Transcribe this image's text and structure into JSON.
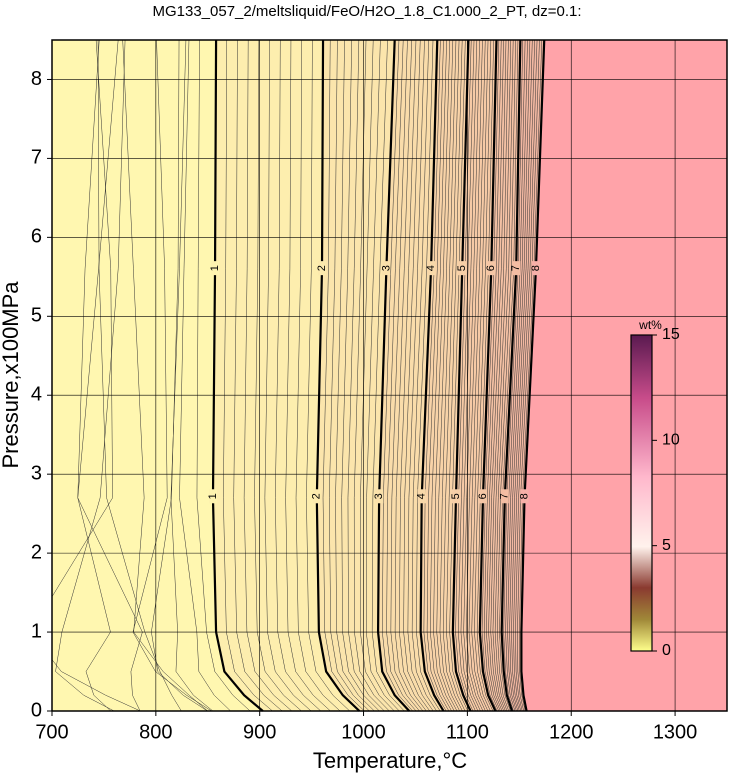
{
  "chart_data": {
    "type": "contour",
    "title": "MG133_057_2/meltsliquid/FeO/H2O_1.8_C1.000_2_PT, dz=0.1:",
    "x_label": "Temperature,°C",
    "y_label": "Pressure,x100MPa",
    "xlim": [
      700,
      1350
    ],
    "xticks": [
      700,
      800,
      900,
      1000,
      1100,
      1200,
      1300
    ],
    "ylim": [
      0,
      8.5
    ],
    "yticks": [
      0,
      1,
      2,
      3,
      4,
      5,
      6,
      7,
      8
    ],
    "grid": true,
    "contours": [
      {
        "level": 1,
        "x": [
          903,
          885,
          866,
          858,
          855,
          857,
          858
        ],
        "y": [
          0,
          0.2,
          0.5,
          1,
          2.7,
          5.6,
          8.5
        ]
      },
      {
        "level": 2,
        "x": [
          996,
          980,
          964,
          957,
          955,
          960,
          961
        ],
        "y": [
          0,
          0.2,
          0.5,
          1,
          2.7,
          5.6,
          8.5
        ]
      },
      {
        "level": 3,
        "x": [
          1044,
          1030,
          1018,
          1014,
          1015,
          1022,
          1030
        ],
        "y": [
          0,
          0.2,
          0.5,
          1,
          2.7,
          5.6,
          8.5
        ]
      },
      {
        "level": 4,
        "x": [
          1077,
          1068,
          1059,
          1055,
          1056,
          1065,
          1071
        ],
        "y": [
          0,
          0.2,
          0.5,
          1,
          2.7,
          5.6,
          8.5
        ]
      },
      {
        "level": 5,
        "x": [
          1103,
          1096,
          1089,
          1086,
          1089,
          1095,
          1101
        ],
        "y": [
          0,
          0.2,
          0.5,
          1,
          2.7,
          5.6,
          8.5
        ]
      },
      {
        "level": 6,
        "x": [
          1127,
          1120,
          1115,
          1112,
          1115,
          1123,
          1128
        ],
        "y": [
          0,
          0.2,
          0.5,
          1,
          2.7,
          5.6,
          8.5
        ]
      },
      {
        "level": 7,
        "x": [
          1143,
          1138,
          1135,
          1133,
          1136,
          1147,
          1151
        ],
        "y": [
          0,
          0.2,
          0.5,
          1,
          2.7,
          5.6,
          8.5
        ]
      },
      {
        "level": 8,
        "x": [
          1157,
          1154,
          1152,
          1152,
          1155,
          1166,
          1174
        ],
        "y": [
          0,
          0.2,
          0.5,
          1,
          2.7,
          5.6,
          8.5
        ]
      }
    ],
    "colorbar": {
      "label": "wt%",
      "lim": [
        0,
        15
      ],
      "ticks": [
        0,
        5,
        10,
        15
      ]
    }
  }
}
